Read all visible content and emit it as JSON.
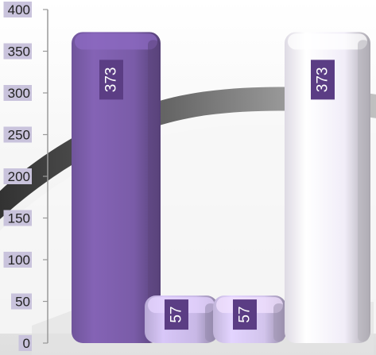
{
  "chart_data": {
    "type": "bar",
    "style": "3d-beveled",
    "categories": [
      "",
      "",
      "",
      ""
    ],
    "values": [
      373,
      57,
      57,
      373
    ],
    "data_labels": [
      "373",
      "57",
      "57",
      "373"
    ],
    "ylim": [
      0,
      400
    ],
    "yticks": [
      "0",
      "50",
      "100",
      "150",
      "200",
      "250",
      "300",
      "350",
      "400"
    ],
    "grid": false,
    "legend": "none",
    "colors": {
      "bars": [
        "#7a5ca8",
        "#c8b8e6",
        "#d2c4ec",
        "#f1edf8"
      ],
      "label_box": "#5b3d84",
      "tick_label_bg": "#c9c3dc"
    }
  }
}
